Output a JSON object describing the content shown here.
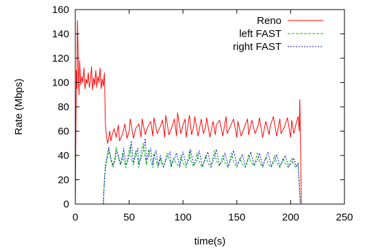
{
  "chart_data": {
    "type": "line",
    "xlabel": "time(s)",
    "ylabel": "Rate (Mbps)",
    "xlim": [
      0,
      250
    ],
    "ylim": [
      0,
      160
    ],
    "xticks": [
      0,
      50,
      100,
      150,
      200,
      250
    ],
    "yticks": [
      0,
      20,
      40,
      60,
      80,
      100,
      120,
      140,
      160
    ],
    "grid": false,
    "legend_position": "top-right",
    "series": [
      {
        "name": "Reno",
        "color": "#ff0000",
        "dash": "solid",
        "x": [
          0,
          0.5,
          1,
          1.5,
          2,
          2.5,
          3,
          3.5,
          4,
          5,
          6,
          7,
          8,
          9,
          10,
          11,
          12,
          13,
          14,
          15,
          16,
          17,
          18,
          19,
          20,
          21,
          22,
          23,
          24,
          25,
          26,
          27,
          28,
          29,
          30,
          31,
          32,
          33,
          34,
          36,
          38,
          40,
          41,
          44,
          46,
          48,
          50,
          51,
          54,
          56,
          59,
          61,
          62,
          65,
          67,
          70,
          72,
          73,
          76,
          79,
          81,
          83,
          84,
          87,
          90,
          92,
          94,
          95,
          98,
          100,
          102,
          103,
          106,
          108,
          110,
          111,
          114,
          117,
          119,
          121,
          122,
          125,
          128,
          130,
          131,
          134,
          137,
          140,
          141,
          144,
          147,
          150,
          151,
          154,
          157,
          160,
          161,
          164,
          167,
          170,
          171,
          174,
          177,
          180,
          181,
          184,
          187,
          190,
          191,
          194,
          197,
          200,
          201,
          203,
          205,
          207,
          208,
          208.5,
          209,
          210
        ],
        "y": [
          0,
          60,
          110,
          95,
          151,
          130,
          100,
          90,
          118,
          98,
          105,
          100,
          112,
          95,
          103,
          99,
          108,
          96,
          101,
          113,
          94,
          104,
          98,
          110,
          96,
          105,
          100,
          112,
          95,
          103,
          97,
          108,
          65,
          55,
          50,
          54,
          60,
          52,
          56,
          62,
          55,
          65,
          52,
          58,
          66,
          54,
          60,
          70,
          54,
          62,
          66,
          55,
          70,
          57,
          63,
          68,
          56,
          71,
          58,
          64,
          69,
          55,
          73,
          57,
          64,
          70,
          56,
          75,
          58,
          65,
          70,
          55,
          73,
          57,
          64,
          72,
          56,
          70,
          58,
          63,
          71,
          55,
          68,
          57,
          65,
          69,
          56,
          72,
          58,
          64,
          70,
          55,
          68,
          56,
          63,
          70,
          57,
          69,
          58,
          65,
          71,
          55,
          68,
          57,
          64,
          72,
          56,
          70,
          58,
          63,
          71,
          55,
          69,
          58,
          66,
          72,
          60,
          86,
          62,
          0
        ]
      },
      {
        "name": "left FAST",
        "color": "#00c000",
        "dash": "dashed",
        "x": [
          26,
          27,
          28,
          30,
          31,
          33,
          35,
          37,
          38,
          40,
          42,
          44,
          45,
          47,
          49,
          51,
          52,
          54,
          56,
          58,
          59,
          61,
          63,
          65,
          66,
          68,
          70,
          72,
          73,
          75,
          77,
          79,
          80,
          82,
          85,
          88,
          89,
          91,
          94,
          97,
          98,
          100,
          103,
          106,
          107,
          110,
          113,
          115,
          118,
          121,
          123,
          126,
          129,
          131,
          134,
          137,
          139,
          142,
          145,
          147,
          150,
          153,
          155,
          158,
          161,
          163,
          166,
          169,
          171,
          174,
          177,
          179,
          182,
          185,
          187,
          190,
          193,
          195,
          198,
          201,
          203,
          205,
          207,
          208,
          209
        ],
        "y": [
          0,
          18,
          30,
          38,
          45,
          36,
          30,
          40,
          47,
          38,
          32,
          42,
          36,
          30,
          40,
          48,
          38,
          32,
          44,
          36,
          30,
          42,
          50,
          38,
          32,
          45,
          36,
          30,
          42,
          36,
          30,
          38,
          33,
          30,
          42,
          35,
          30,
          38,
          33,
          30,
          40,
          34,
          30,
          44,
          36,
          31,
          42,
          35,
          30,
          40,
          34,
          30,
          44,
          36,
          31,
          40,
          34,
          30,
          42,
          35,
          30,
          38,
          33,
          30,
          41,
          35,
          31,
          42,
          35,
          30,
          39,
          33,
          30,
          40,
          34,
          30,
          38,
          33,
          30,
          38,
          32,
          30,
          34,
          18,
          0
        ]
      },
      {
        "name": "right FAST",
        "color": "#0000dd",
        "dash": "dotted",
        "x": [
          26,
          27,
          28,
          30,
          31,
          33,
          35,
          37,
          38,
          40,
          42,
          44,
          45,
          47,
          49,
          51,
          52,
          54,
          56,
          58,
          59,
          61,
          63,
          65,
          66,
          68,
          70,
          72,
          73,
          75,
          77,
          79,
          80,
          82,
          85,
          88,
          89,
          91,
          94,
          97,
          98,
          100,
          103,
          106,
          107,
          110,
          113,
          115,
          118,
          121,
          123,
          126,
          129,
          131,
          134,
          137,
          139,
          142,
          145,
          147,
          150,
          153,
          155,
          158,
          161,
          163,
          166,
          169,
          171,
          174,
          177,
          179,
          182,
          185,
          187,
          190,
          193,
          195,
          198,
          201,
          203,
          205,
          207,
          208,
          209
        ],
        "y": [
          0,
          20,
          32,
          42,
          47,
          38,
          32,
          36,
          44,
          40,
          33,
          38,
          46,
          32,
          36,
          44,
          52,
          34,
          40,
          46,
          33,
          38,
          44,
          54,
          35,
          40,
          46,
          32,
          38,
          44,
          32,
          40,
          36,
          31,
          38,
          43,
          32,
          35,
          42,
          31,
          36,
          43,
          32,
          38,
          45,
          32,
          36,
          44,
          31,
          37,
          43,
          31,
          38,
          45,
          32,
          36,
          42,
          31,
          38,
          44,
          32,
          36,
          41,
          31,
          37,
          43,
          32,
          36,
          42,
          31,
          38,
          43,
          31,
          35,
          41,
          31,
          36,
          40,
          31,
          34,
          38,
          31,
          33,
          16,
          0
        ]
      }
    ]
  }
}
